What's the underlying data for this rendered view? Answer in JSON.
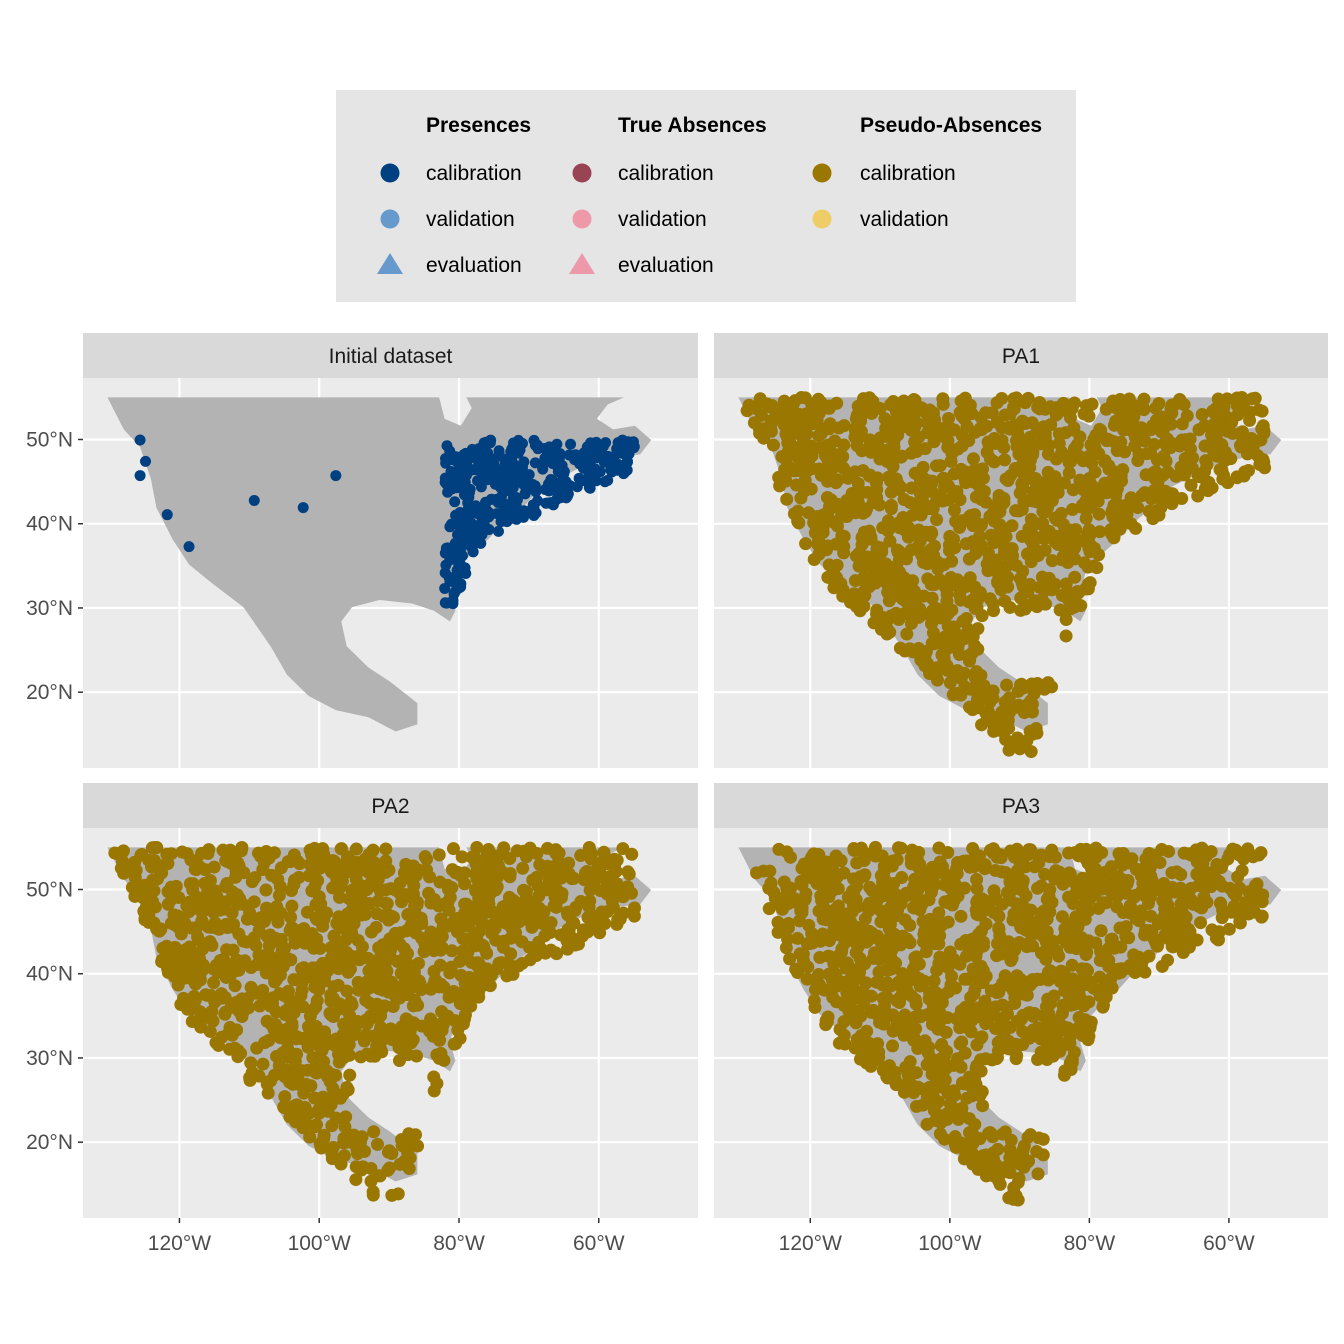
{
  "legend": {
    "groups": [
      {
        "title": "Presences",
        "entries": [
          {
            "label": "calibration",
            "shape": "circle",
            "color": "#004080"
          },
          {
            "label": "validation",
            "shape": "circle",
            "color": "#6699CC"
          },
          {
            "label": "evaluation",
            "shape": "triangle",
            "color": "#6699CC"
          }
        ]
      },
      {
        "title": "True Absences",
        "entries": [
          {
            "label": "calibration",
            "shape": "circle",
            "color": "#994455"
          },
          {
            "label": "validation",
            "shape": "circle",
            "color": "#EE99AA"
          },
          {
            "label": "evaluation",
            "shape": "triangle",
            "color": "#EE99AA"
          }
        ]
      },
      {
        "title": "Pseudo-Absences",
        "entries": [
          {
            "label": "calibration",
            "shape": "circle",
            "color": "#997700"
          },
          {
            "label": "validation",
            "shape": "circle",
            "color": "#EECC66"
          }
        ]
      }
    ]
  },
  "facets": [
    {
      "title": "Initial dataset",
      "layer": "presences"
    },
    {
      "title": "PA1",
      "layer": "pseudo-absences"
    },
    {
      "title": "PA2",
      "layer": "pseudo-absences"
    },
    {
      "title": "PA3",
      "layer": "pseudo-absences"
    }
  ],
  "axes": {
    "x_ticks": [
      "120°W",
      "100°W",
      "80°W",
      "60°W"
    ],
    "x_values": [
      -120,
      -100,
      -80,
      -60
    ],
    "y_ticks": [
      "20°N",
      "30°N",
      "40°N",
      "50°N"
    ],
    "y_values": [
      20,
      30,
      40,
      50
    ],
    "xlim": [
      -133.8,
      -45.8
    ],
    "ylim": [
      11,
      57.3
    ]
  },
  "colors": {
    "panel_bg": "#EBEBEB",
    "strip_bg": "#D9D9D9",
    "grid": "#FFFFFF",
    "land": "#B3B3B3",
    "legend_bg": "#E5E5E5",
    "presence": "#004080",
    "pseudo_absence": "#997700"
  }
}
